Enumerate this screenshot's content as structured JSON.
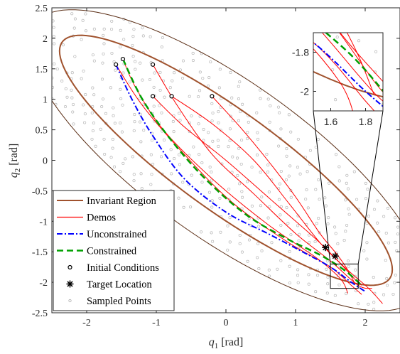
{
  "chart_data": {
    "type": "line",
    "title": "",
    "xlabel_main": "q",
    "xlabel_sub": "1",
    "xlabel_unit": "[rad]",
    "ylabel_main": "q",
    "ylabel_sub": "2",
    "ylabel_unit": "[rad]",
    "xlim": [
      -2.5,
      2.5
    ],
    "ylim": [
      -2.5,
      2.5
    ],
    "xticks": [
      -2,
      -1,
      0,
      1,
      2
    ],
    "yticks": [
      -2.5,
      -2,
      -1.5,
      -1,
      -0.5,
      0,
      0.5,
      1,
      1.5,
      2,
      2.5
    ],
    "xtick_labels": [
      "-2",
      "-1",
      "0",
      "1",
      "2"
    ],
    "ytick_labels": [
      "-2.5",
      "-2",
      "-1.5",
      "-1",
      "-0.5",
      "0",
      "0.5",
      "1",
      "1.5",
      "2",
      "2.5"
    ],
    "grid": false,
    "legend_position": "bottom-left",
    "legend": [
      {
        "label": "Invariant Region",
        "color": "#a0522d",
        "style": "solid"
      },
      {
        "label": "Demos",
        "color": "#ff0000",
        "style": "solid"
      },
      {
        "label": "Unconstrained",
        "color": "#0000ff",
        "style": "dashdot"
      },
      {
        "label": "Constrained",
        "color": "#00a000",
        "style": "dashed"
      },
      {
        "label": "Initial Conditions",
        "color": "#000000",
        "style": "circle"
      },
      {
        "label": "Target Location",
        "color": "#000000",
        "style": "star"
      },
      {
        "label": "Sampled Points",
        "color": "#b0b0b0",
        "style": "small-circle"
      }
    ],
    "invariant_region": {
      "inner_ellipse": {
        "center": [
          0,
          0
        ],
        "semi_major": 3.05,
        "semi_minor": 0.78,
        "angle_deg": -40,
        "color": "#a0522d"
      },
      "outer_ellipse": {
        "center": [
          0,
          0
        ],
        "semi_major": 3.55,
        "semi_minor": 1.23,
        "angle_deg": -40,
        "color": "#5a2d14"
      }
    },
    "initial_conditions": [
      [
        -1.58,
        1.57
      ],
      [
        -1.48,
        1.66
      ],
      [
        -1.05,
        1.57
      ],
      [
        -1.05,
        1.05
      ],
      [
        -0.78,
        1.05
      ],
      [
        -0.2,
        1.05
      ]
    ],
    "target_locations": [
      [
        1.43,
        -1.43
      ],
      [
        1.57,
        -1.57
      ]
    ],
    "demos": [
      [
        [
          -1.58,
          1.57
        ],
        [
          -1.2,
          0.9
        ],
        [
          -0.6,
          0.1
        ],
        [
          0.1,
          -0.7
        ],
        [
          0.9,
          -1.35
        ],
        [
          1.5,
          -1.75
        ],
        [
          1.8,
          -2.05
        ],
        [
          1.95,
          -2.2
        ]
      ],
      [
        [
          -1.48,
          1.66
        ],
        [
          -1.3,
          1.2
        ],
        [
          -0.9,
          0.5
        ],
        [
          -0.2,
          -0.3
        ],
        [
          0.6,
          -1.05
        ],
        [
          1.3,
          -1.6
        ],
        [
          1.65,
          -1.95
        ],
        [
          1.75,
          -2.18
        ]
      ],
      [
        [
          -1.05,
          1.57
        ],
        [
          -0.7,
          0.9
        ],
        [
          -0.2,
          0.1
        ],
        [
          0.4,
          -0.55
        ],
        [
          1.0,
          -1.2
        ],
        [
          1.5,
          -1.65
        ],
        [
          1.9,
          -2.05
        ],
        [
          2.1,
          -2.1
        ]
      ],
      [
        [
          -1.05,
          1.05
        ],
        [
          -0.6,
          0.55
        ],
        [
          0.0,
          0.0
        ],
        [
          0.7,
          -0.7
        ],
        [
          1.3,
          -1.3
        ],
        [
          1.7,
          -1.75
        ],
        [
          2.05,
          -2.1
        ],
        [
          2.25,
          -2.35
        ]
      ],
      [
        [
          -0.78,
          1.05
        ],
        [
          -0.2,
          0.6
        ],
        [
          0.4,
          0.0
        ],
        [
          0.9,
          -0.7
        ],
        [
          1.35,
          -1.35
        ],
        [
          1.65,
          -1.7
        ],
        [
          1.85,
          -1.95
        ],
        [
          1.95,
          -2.05
        ]
      ],
      [
        [
          -0.2,
          1.05
        ],
        [
          0.2,
          0.55
        ],
        [
          0.6,
          0.0
        ],
        [
          1.0,
          -0.6
        ],
        [
          1.35,
          -1.2
        ],
        [
          1.6,
          -1.55
        ],
        [
          1.75,
          -1.8
        ],
        [
          1.85,
          -2.02
        ]
      ]
    ],
    "unconstrained": [
      [
        -1.58,
        1.57
      ],
      [
        -1.35,
        1.0
      ],
      [
        -1.05,
        0.4
      ],
      [
        -0.6,
        -0.3
      ],
      [
        0.0,
        -0.85
      ],
      [
        0.6,
        -1.2
      ],
      [
        1.1,
        -1.5
      ],
      [
        1.5,
        -1.75
      ],
      [
        1.8,
        -2.0
      ],
      [
        2.0,
        -2.15
      ]
    ],
    "constrained": [
      [
        -1.48,
        1.66
      ],
      [
        -1.2,
        1.0
      ],
      [
        -0.8,
        0.35
      ],
      [
        -0.3,
        -0.3
      ],
      [
        0.3,
        -0.9
      ],
      [
        0.9,
        -1.3
      ],
      [
        1.35,
        -1.55
      ],
      [
        1.7,
        -1.8
      ],
      [
        1.95,
        -2.05
      ]
    ],
    "inset": {
      "xlim": [
        1.5,
        1.9
      ],
      "ylim": [
        -2.1,
        -1.7
      ],
      "xtick_labels": [
        "1.6",
        "1.8"
      ],
      "ytick_labels": [
        "-1.8",
        "-2"
      ],
      "xticks": [
        1.6,
        1.8
      ],
      "yticks": [
        -1.8,
        -2.0
      ]
    },
    "zoom_box": {
      "xlim": [
        1.5,
        1.9
      ],
      "ylim": [
        -2.1,
        -1.7
      ]
    }
  }
}
